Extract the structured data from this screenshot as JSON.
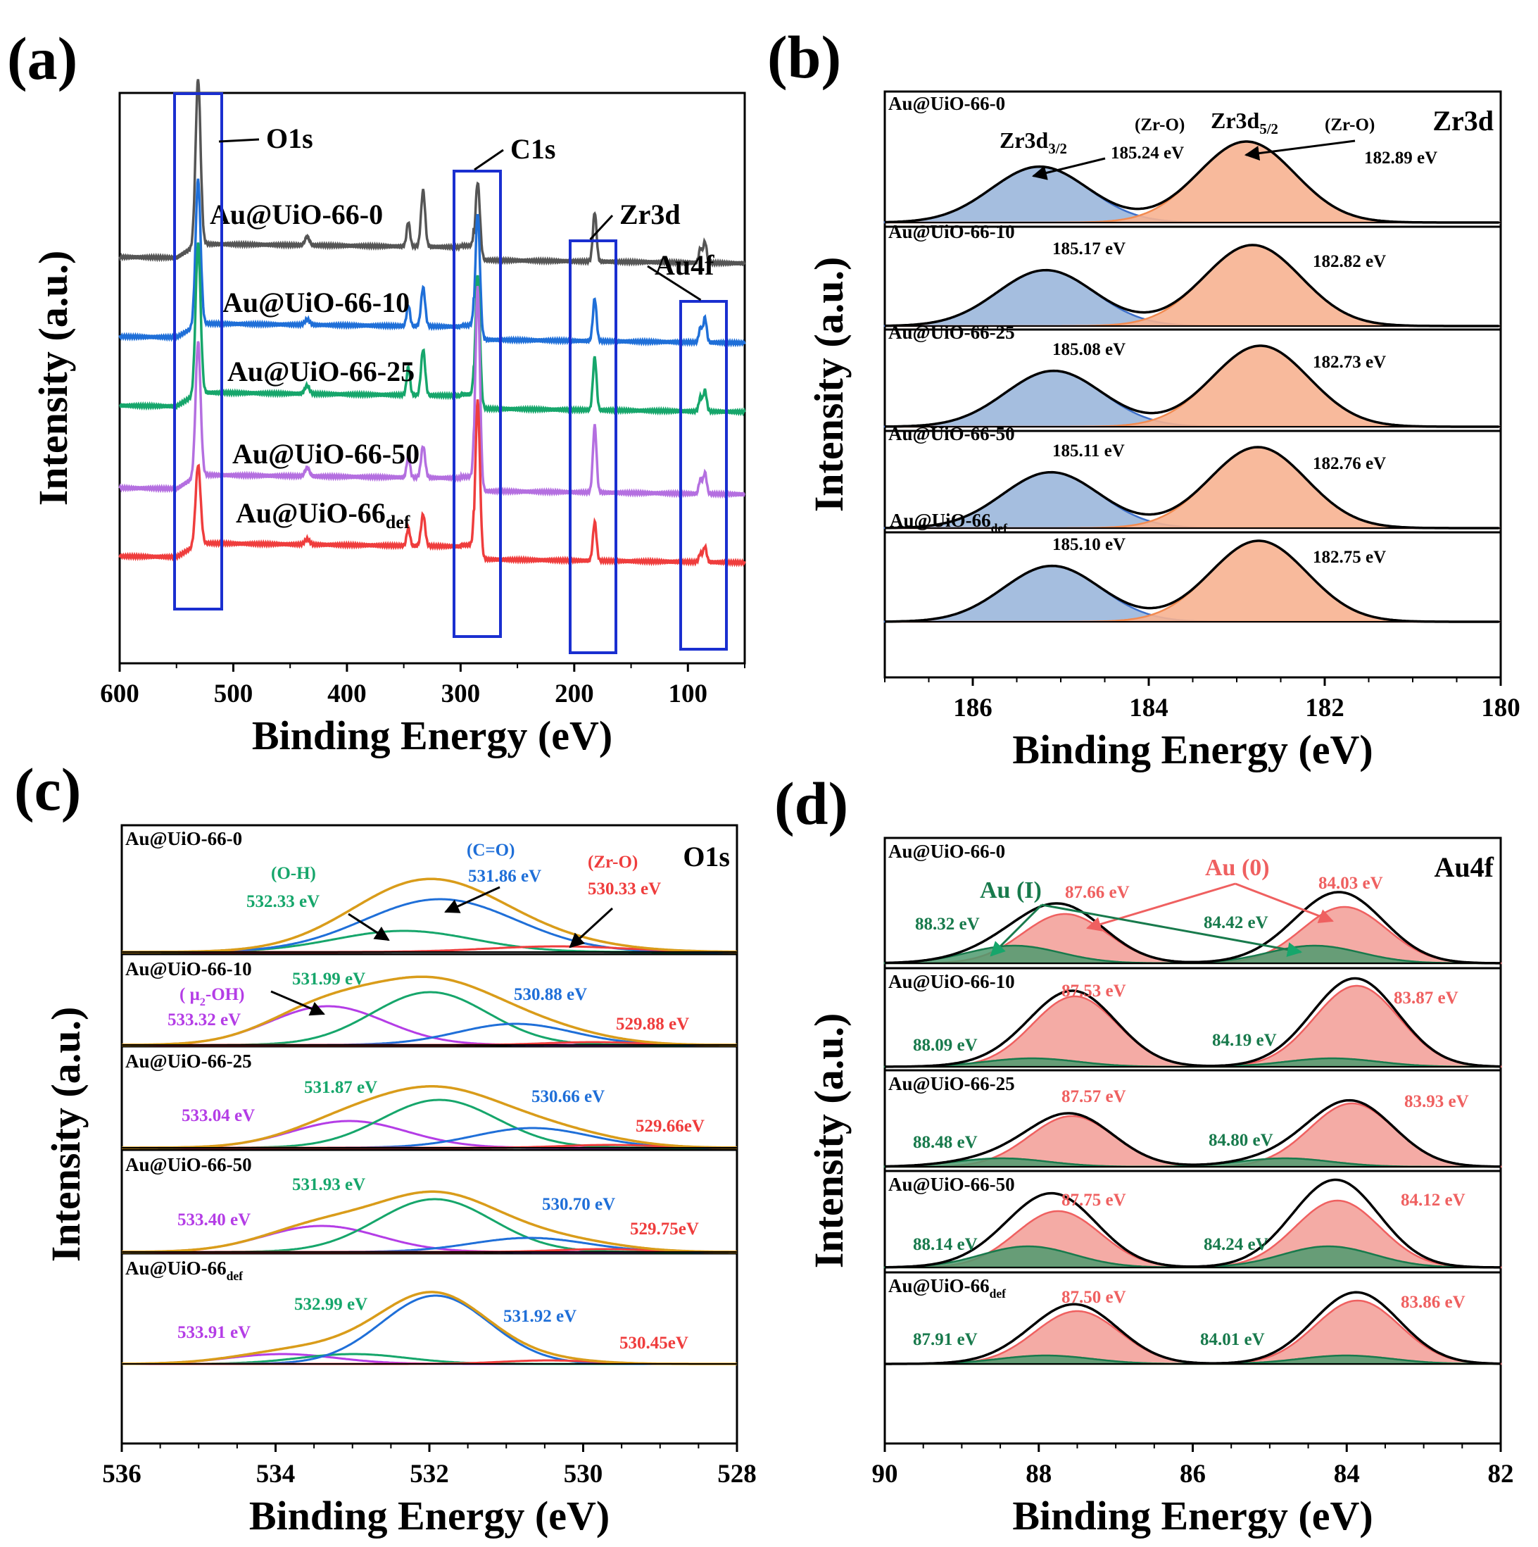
{
  "chart_data": [
    {
      "type": "line",
      "panel": "(a)",
      "xlabel": "Binding Energy (eV)",
      "ylabel": "Intensity (a.u.)",
      "xlim": [
        600,
        50
      ],
      "xticks": [
        "600",
        "500",
        "400",
        "300",
        "200",
        "100"
      ],
      "series": [
        {
          "name": "Au@UiO-66-0",
          "color": "#555555"
        },
        {
          "name": "Au@UiO-66-10",
          "color": "#1f6fd8"
        },
        {
          "name": "Au@UiO-66-25",
          "color": "#16a66b"
        },
        {
          "name": "Au@UiO-66-50",
          "color": "#b46fe0"
        },
        {
          "name": "Au@UiO-66",
          "sub": "def",
          "color": "#ef3d3d"
        }
      ],
      "peak_regions": [
        {
          "name": "O1s",
          "center": 531
        },
        {
          "name": "C1s",
          "center": 285
        },
        {
          "name": "Zr3d",
          "center": 182
        },
        {
          "name": "Au4f",
          "center": 85
        }
      ]
    },
    {
      "type": "line",
      "panel": "(b)",
      "title": "Zr3d",
      "xlabel": "Binding Energy (eV)",
      "ylabel": "Intensity (a.u.)",
      "xlim": [
        187,
        180
      ],
      "xticks": [
        "186",
        "184",
        "182",
        "180"
      ],
      "component_labels": [
        {
          "prefix": "Zr3d",
          "sub": "3/2",
          "assignment": "(Zr-O)"
        },
        {
          "prefix": "Zr3d",
          "sub": "5/2",
          "assignment": "(Zr-O)"
        }
      ],
      "samples": [
        {
          "name": "Au@UiO-66-0",
          "zr3d32": 185.24,
          "zr3d32_label": "185.24 eV",
          "zr3d52": 182.89,
          "zr3d52_label": "182.89 eV"
        },
        {
          "name": "Au@UiO-66-10",
          "zr3d32": 185.17,
          "zr3d32_label": "185.17 eV",
          "zr3d52": 182.82,
          "zr3d52_label": "182.82 eV"
        },
        {
          "name": "Au@UiO-66-25",
          "zr3d32": 185.08,
          "zr3d32_label": "185.08 eV",
          "zr3d52": 182.73,
          "zr3d52_label": "182.73 eV"
        },
        {
          "name": "Au@UiO-66-50",
          "zr3d32": 185.11,
          "zr3d32_label": "185.11 eV",
          "zr3d52": 182.76,
          "zr3d52_label": "182.76 eV"
        },
        {
          "name": "Au@UiO-66",
          "sub": "def",
          "zr3d32": 185.1,
          "zr3d32_label": "185.10 eV",
          "zr3d52": 182.75,
          "zr3d52_label": "182.75 eV"
        }
      ]
    },
    {
      "type": "line",
      "panel": "(c)",
      "title": "O1s",
      "xlabel": "Binding Energy (eV)",
      "ylabel": "Intensity (a.u.)",
      "xlim": [
        536,
        528
      ],
      "xticks": [
        "536",
        "534",
        "532",
        "530",
        "528"
      ],
      "assignments": {
        "oh": "(O-H)",
        "co": "(C=O)",
        "zro": "(Zr-O)",
        "mu2oh_prefix": "( μ",
        "mu2oh_sub": "2",
        "mu2oh_suffix": "-OH)"
      },
      "samples": [
        {
          "name": "Au@UiO-66-0",
          "peaks": [
            {
              "center": 532.33,
              "label": "532.33 eV",
              "color": "#16a66b"
            },
            {
              "center": 531.86,
              "label": "531.86 eV",
              "color": "#1f6fd8"
            },
            {
              "center": 530.33,
              "label": "530.33 eV",
              "color": "#ef3d3d"
            }
          ]
        },
        {
          "name": "Au@UiO-66-10",
          "peaks": [
            {
              "center": 533.32,
              "label": "533.32 eV",
              "color": "#b43de6"
            },
            {
              "center": 531.99,
              "label": "531.99 eV",
              "color": "#16a66b"
            },
            {
              "center": 530.88,
              "label": "530.88 eV",
              "color": "#1f6fd8"
            },
            {
              "center": 529.88,
              "label": "529.88 eV",
              "color": "#ef3d3d"
            }
          ]
        },
        {
          "name": "Au@UiO-66-25",
          "peaks": [
            {
              "center": 533.04,
              "label": "533.04 eV",
              "color": "#b43de6"
            },
            {
              "center": 531.87,
              "label": "531.87 eV",
              "color": "#16a66b"
            },
            {
              "center": 530.66,
              "label": "530.66 eV",
              "color": "#1f6fd8"
            },
            {
              "center": 529.66,
              "label": "529.66eV",
              "color": "#ef3d3d"
            }
          ]
        },
        {
          "name": "Au@UiO-66-50",
          "peaks": [
            {
              "center": 533.4,
              "label": "533.40 eV",
              "color": "#b43de6"
            },
            {
              "center": 531.93,
              "label": "531.93 eV",
              "color": "#16a66b"
            },
            {
              "center": 530.7,
              "label": "530.70 eV",
              "color": "#1f6fd8"
            },
            {
              "center": 529.75,
              "label": "529.75eV",
              "color": "#ef3d3d"
            }
          ]
        },
        {
          "name": "Au@UiO-66",
          "sub": "def",
          "peaks": [
            {
              "center": 533.91,
              "label": "533.91 eV",
              "color": "#b43de6"
            },
            {
              "center": 532.99,
              "label": "532.99 eV",
              "color": "#16a66b"
            },
            {
              "center": 531.92,
              "label": "531.92 eV",
              "color": "#1f6fd8"
            },
            {
              "center": 530.45,
              "label": "530.45eV",
              "color": "#ef3d3d"
            }
          ]
        }
      ]
    },
    {
      "type": "line",
      "panel": "(d)",
      "title": "Au4f",
      "xlabel": "Binding Energy (eV)",
      "ylabel": "Intensity (a.u.)",
      "xlim": [
        90,
        82
      ],
      "xticks": [
        "90",
        "88",
        "86",
        "84",
        "82"
      ],
      "legend": {
        "au0": "Au (0)",
        "au1": "Au (I)"
      },
      "samples": [
        {
          "name": "Au@UiO-66-0",
          "au0_72": 87.66,
          "au0_72_label": "87.66 eV",
          "au0_52": 84.03,
          "au0_52_label": "84.03 eV",
          "au1_72": 88.32,
          "au1_72_label": "88.32 eV",
          "au1_52": 84.42,
          "au1_52_label": "84.42 eV"
        },
        {
          "name": "Au@UiO-66-10",
          "au0_72": 87.53,
          "au0_72_label": "87.53 eV",
          "au0_52": 83.87,
          "au0_52_label": "83.87 eV",
          "au1_72": 88.09,
          "au1_72_label": "88.09 eV",
          "au1_52": 84.19,
          "au1_52_label": "84.19 eV"
        },
        {
          "name": "Au@UiO-66-25",
          "au0_72": 87.57,
          "au0_72_label": "87.57 eV",
          "au0_52": 83.93,
          "au0_52_label": "83.93 eV",
          "au1_72": 88.48,
          "au1_72_label": "88.48 eV",
          "au1_52": 84.8,
          "au1_52_label": "84.80 eV"
        },
        {
          "name": "Au@UiO-66-50",
          "au0_72": 87.75,
          "au0_72_label": "87.75 eV",
          "au0_52": 84.12,
          "au0_52_label": "84.12 eV",
          "au1_72": 88.14,
          "au1_72_label": "88.14 eV",
          "au1_52": 84.24,
          "au1_52_label": "84.24 eV"
        },
        {
          "name": "Au@UiO-66",
          "sub": "def",
          "au0_72": 87.5,
          "au0_72_label": "87.50 eV",
          "au0_52": 83.86,
          "au0_52_label": "83.86 eV",
          "au1_72": 87.91,
          "au1_72_label": "87.91 eV",
          "au1_52": 84.01,
          "au1_52_label": "84.01 eV"
        }
      ]
    }
  ]
}
